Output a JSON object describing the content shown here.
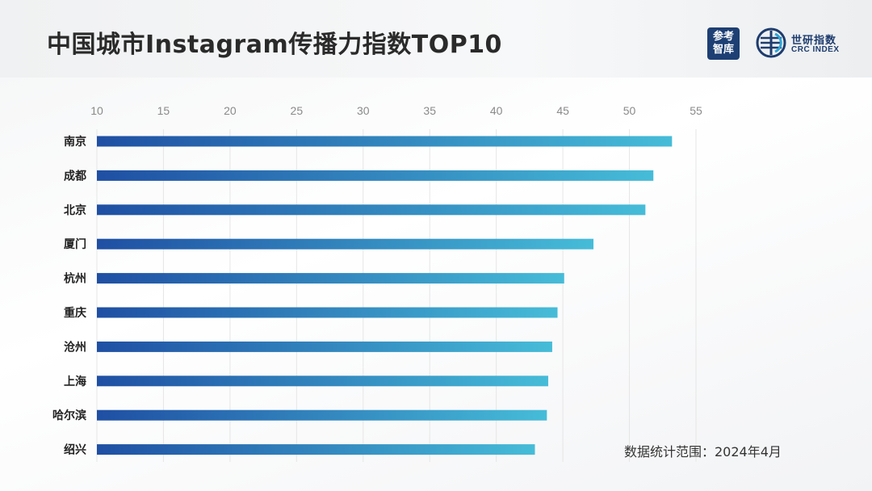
{
  "header": {
    "title": "中国城市Instagram传播力指数TOP10",
    "logo1_text": "参考智库",
    "logo2_cn": "世研指数",
    "logo2_en": "CRC INDEX"
  },
  "footnote": "数据统计范围：2024年4月",
  "colors": {
    "bar_start": "#1f4fa3",
    "bar_end": "#46bcd8",
    "brand": "#1d3f73"
  },
  "chart_data": {
    "type": "bar",
    "orientation": "horizontal",
    "title": "中国城市Instagram传播力指数TOP10",
    "xlabel": "",
    "ylabel": "",
    "xlim": [
      10,
      55
    ],
    "xticks": [
      10,
      15,
      20,
      25,
      30,
      35,
      40,
      45,
      50,
      55
    ],
    "categories": [
      "南京",
      "成都",
      "北京",
      "厦门",
      "杭州",
      "重庆",
      "沧州",
      "上海",
      "哈尔滨",
      "绍兴"
    ],
    "values": [
      53.2,
      51.8,
      51.2,
      47.3,
      45.1,
      44.6,
      44.2,
      43.9,
      43.8,
      42.9
    ],
    "grid": true,
    "legend": "none"
  }
}
